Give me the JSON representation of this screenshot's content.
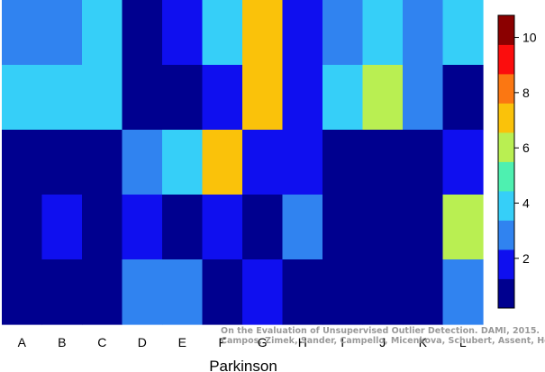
{
  "chart_data": {
    "type": "heatmap",
    "xlabel": "Parkinson",
    "ylabel": "",
    "title": "",
    "categories": [
      "A",
      "B",
      "C",
      "D",
      "E",
      "F",
      "G",
      "H",
      "I",
      "J",
      "K",
      "L"
    ],
    "rows": 5,
    "values": [
      [
        3,
        3,
        4,
        1,
        2,
        4,
        7,
        2,
        3,
        4,
        3,
        4
      ],
      [
        4,
        4,
        4,
        1,
        1,
        2,
        7,
        2,
        4,
        6,
        3,
        1
      ],
      [
        1,
        1,
        1,
        3,
        4,
        7,
        2,
        2,
        1,
        1,
        1,
        2
      ],
      [
        1,
        2,
        1,
        2,
        1,
        2,
        1,
        3,
        1,
        1,
        1,
        6
      ],
      [
        1,
        1,
        1,
        3,
        3,
        1,
        2,
        1,
        1,
        1,
        1,
        3
      ]
    ],
    "colorbar": {
      "min": 0.2,
      "max": 10.8,
      "ticks": [
        2,
        4,
        6,
        8,
        10
      ],
      "colors": [
        "#00008f",
        "#0f0fef",
        "#3083f0",
        "#36cff8",
        "#4ef0b0",
        "#b9ef52",
        "#fac20a",
        "#fb7712",
        "#fb0d0d",
        "#8b0000"
      ]
    },
    "grid": false,
    "legend": "none"
  },
  "watermark": {
    "line1": "On the Evaluation of Unsupervised Outlier Detection. DAMI, 2015.",
    "line2": "Campos, Zimek, Sander, Campello, Micenkova, Schubert, Assent, Houle"
  }
}
